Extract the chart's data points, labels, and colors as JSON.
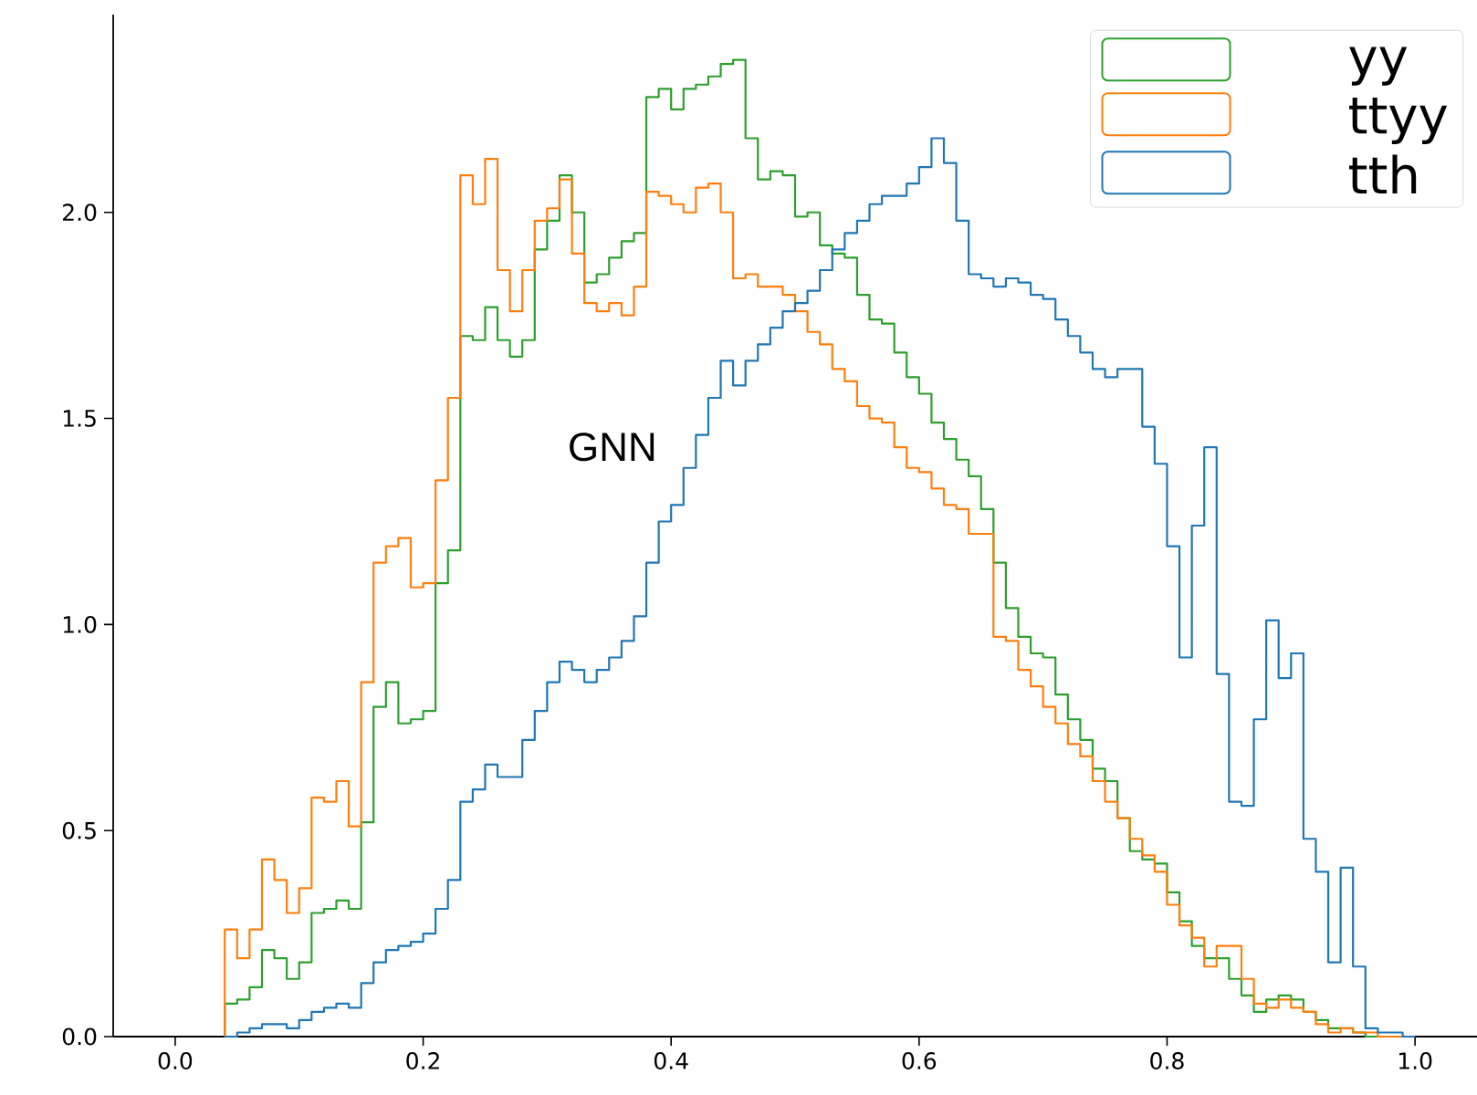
{
  "chart_data": {
    "type": "histogram",
    "bins": [
      0.04,
      0.05,
      0.06,
      0.07,
      0.08,
      0.09,
      0.1,
      0.11,
      0.12,
      0.13,
      0.14,
      0.15,
      0.16,
      0.17,
      0.18,
      0.19,
      0.2,
      0.21,
      0.22,
      0.23,
      0.24,
      0.25,
      0.26,
      0.27,
      0.28,
      0.29,
      0.3,
      0.31,
      0.32,
      0.33,
      0.34,
      0.35,
      0.36,
      0.37,
      0.38,
      0.39,
      0.4,
      0.41,
      0.42,
      0.43,
      0.44,
      0.45,
      0.46,
      0.47,
      0.48,
      0.49,
      0.5,
      0.51,
      0.52,
      0.53,
      0.54,
      0.55,
      0.56,
      0.57,
      0.58,
      0.59,
      0.6,
      0.61,
      0.62,
      0.63,
      0.64,
      0.65,
      0.66,
      0.67,
      0.68,
      0.69,
      0.7,
      0.71,
      0.72,
      0.73,
      0.74,
      0.75,
      0.76,
      0.77,
      0.78,
      0.79,
      0.8,
      0.81,
      0.82,
      0.83,
      0.84,
      0.85,
      0.86,
      0.87,
      0.88,
      0.89,
      0.9,
      0.91,
      0.92,
      0.93,
      0.94,
      0.95,
      0.96,
      0.97,
      0.98,
      0.99,
      1.0
    ],
    "series": [
      {
        "name": "yy",
        "color": "#2ca02c",
        "values": [
          0.08,
          0.09,
          0.12,
          0.21,
          0.19,
          0.14,
          0.18,
          0.3,
          0.31,
          0.33,
          0.31,
          0.52,
          0.8,
          0.86,
          0.76,
          0.77,
          0.79,
          1.1,
          1.18,
          1.7,
          1.69,
          1.77,
          1.69,
          1.65,
          1.69,
          1.91,
          1.98,
          2.09,
          2.0,
          1.83,
          1.85,
          1.89,
          1.93,
          1.95,
          2.28,
          2.3,
          2.25,
          2.3,
          2.31,
          2.33,
          2.36,
          2.37,
          2.18,
          2.08,
          2.1,
          2.09,
          1.99,
          2.0,
          1.92,
          1.9,
          1.89,
          1.8,
          1.74,
          1.73,
          1.66,
          1.6,
          1.56,
          1.49,
          1.45,
          1.4,
          1.36,
          1.28,
          1.15,
          1.04,
          0.97,
          0.93,
          0.92,
          0.83,
          0.77,
          0.72,
          0.65,
          0.62,
          0.53,
          0.45,
          0.43,
          0.42,
          0.35,
          0.28,
          0.22,
          0.19,
          0.19,
          0.14,
          0.1,
          0.06,
          0.09,
          0.1,
          0.09,
          0.06,
          0.04,
          0.02,
          0.02,
          0.01,
          0,
          0,
          0,
          0
        ]
      },
      {
        "name": "ttyy",
        "color": "#ff7f0e",
        "values": [
          0.26,
          0.19,
          0.26,
          0.43,
          0.38,
          0.3,
          0.36,
          0.58,
          0.57,
          0.62,
          0.51,
          0.86,
          1.15,
          1.19,
          1.21,
          1.09,
          1.1,
          1.35,
          1.55,
          2.09,
          2.02,
          2.13,
          1.86,
          1.76,
          1.86,
          1.98,
          2.01,
          2.08,
          1.9,
          1.78,
          1.76,
          1.78,
          1.75,
          1.82,
          2.05,
          2.04,
          2.02,
          2.0,
          2.06,
          2.07,
          2.0,
          1.84,
          1.85,
          1.82,
          1.82,
          1.8,
          1.76,
          1.71,
          1.68,
          1.62,
          1.59,
          1.53,
          1.5,
          1.49,
          1.43,
          1.38,
          1.37,
          1.33,
          1.29,
          1.28,
          1.22,
          1.22,
          0.97,
          0.96,
          0.89,
          0.85,
          0.8,
          0.76,
          0.71,
          0.68,
          0.62,
          0.57,
          0.53,
          0.48,
          0.44,
          0.4,
          0.32,
          0.27,
          0.24,
          0.17,
          0.22,
          0.22,
          0.14,
          0.08,
          0.07,
          0.09,
          0.07,
          0.06,
          0.03,
          0.01,
          0.02,
          0.01,
          0.01,
          0,
          0,
          0
        ]
      },
      {
        "name": "tth",
        "color": "#1f77b4",
        "values": [
          0,
          0.01,
          0.02,
          0.03,
          0.03,
          0.02,
          0.04,
          0.06,
          0.07,
          0.08,
          0.07,
          0.13,
          0.18,
          0.21,
          0.22,
          0.23,
          0.25,
          0.31,
          0.38,
          0.57,
          0.6,
          0.66,
          0.63,
          0.63,
          0.72,
          0.79,
          0.86,
          0.91,
          0.89,
          0.86,
          0.89,
          0.92,
          0.96,
          1.02,
          1.15,
          1.25,
          1.29,
          1.38,
          1.46,
          1.55,
          1.64,
          1.58,
          1.64,
          1.68,
          1.72,
          1.76,
          1.78,
          1.81,
          1.86,
          1.91,
          1.95,
          1.98,
          2.02,
          2.04,
          2.04,
          2.07,
          2.11,
          2.18,
          2.12,
          1.98,
          1.85,
          1.84,
          1.82,
          1.84,
          1.83,
          1.8,
          1.79,
          1.74,
          1.7,
          1.66,
          1.62,
          1.6,
          1.62,
          1.62,
          1.48,
          1.39,
          1.19,
          0.92,
          1.24,
          1.43,
          0.88,
          0.57,
          0.56,
          0.77,
          1.01,
          0.87,
          0.93,
          0.48,
          0.4,
          0.18,
          0.41,
          0.17,
          0.02,
          0.01,
          0.01,
          0
        ]
      }
    ],
    "xlim": [
      -0.05,
      1.05
    ],
    "ylim": [
      0,
      2.48
    ],
    "xticks": [
      {
        "value": 0,
        "label": "0.0"
      },
      0.2,
      0.4,
      0.6,
      0.8,
      {
        "value": 1,
        "label": "1.0"
      }
    ],
    "yticks": [
      {
        "value": 0,
        "label": "0.0"
      },
      0.5,
      {
        "value": 1,
        "label": "1.0"
      },
      1.5,
      {
        "value": 2,
        "label": "2.0"
      }
    ],
    "legend": "top right",
    "grid": false,
    "annotations": [
      "GNN"
    ]
  }
}
